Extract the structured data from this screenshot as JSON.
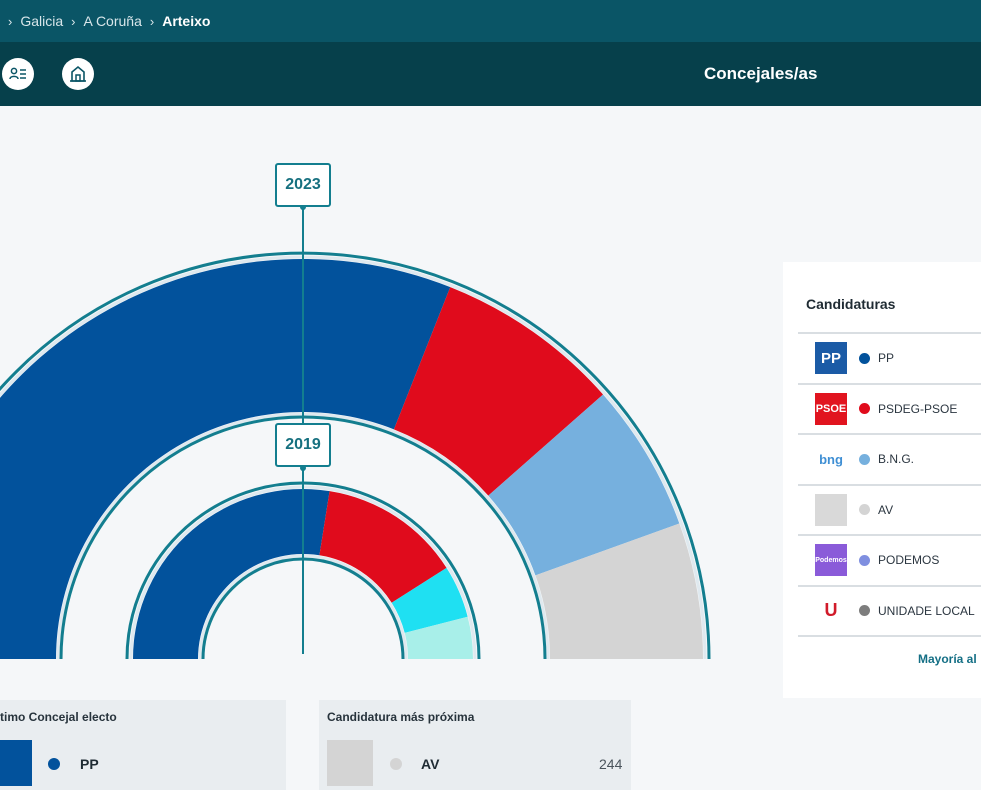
{
  "breadcrumb": [
    "Galicia",
    "A Coruña",
    "Arteixo"
  ],
  "header": {
    "title": "Concejales/as"
  },
  "icons": {
    "list": "candidate-list-icon",
    "building": "town-hall-icon"
  },
  "years": {
    "outer": "2023",
    "inner": "2019"
  },
  "colors": {
    "PP": "#02529c",
    "PSDEG-PSOE": "#e00b1c",
    "B.N.G.": "#76b0de",
    "AV": "#d4d4d4",
    "PODEMOS": "#7f8fe0",
    "UNIDADE LOCAL": "#7d7d7d",
    "cyan": "#1fe0f2",
    "mint": "#a8efe9"
  },
  "arcs": {
    "outer_2023": [
      {
        "party": "PP",
        "share": 0.62
      },
      {
        "party": "PSDEG-PSOE",
        "share": 0.15
      },
      {
        "party": "B.N.G.",
        "share": 0.12
      },
      {
        "party": "AV",
        "share": 0.11
      }
    ],
    "inner_2019": [
      {
        "party": "PP",
        "share": 0.55
      },
      {
        "party": "PSDEG-PSOE",
        "share": 0.27
      },
      {
        "party": "cyan",
        "share": 0.1
      },
      {
        "party": "mint",
        "share": 0.08
      }
    ]
  },
  "candidaturas": {
    "title": "Candidaturas",
    "items": [
      {
        "name": "PP",
        "logo_text": "PP",
        "logo_bg": "#1b5ba6",
        "logo_fg": "#ffffff"
      },
      {
        "name": "PSDEG-PSOE",
        "logo_text": "PSOE",
        "logo_bg": "#e1141f",
        "logo_fg": "#ffffff"
      },
      {
        "name": "B.N.G.",
        "logo_text": "bng",
        "logo_bg": "#ffffff",
        "logo_fg": "#3f8fd4"
      },
      {
        "name": "AV",
        "logo_text": "",
        "logo_bg": "#d9d9d9",
        "logo_fg": "#d9d9d9"
      },
      {
        "name": "PODEMOS",
        "logo_text": "Podemos",
        "logo_bg": "#8a5bd9",
        "logo_fg": "#ffffff"
      },
      {
        "name": "UNIDADE LOCAL",
        "logo_text": "U",
        "logo_bg": "#ffffff",
        "logo_fg": "#d11b2a"
      }
    ],
    "footer": "Mayoría al"
  },
  "cards": {
    "last_elected": {
      "title": "timo Concejal electo",
      "party": "PP"
    },
    "closest": {
      "title": "Candidatura más próxima",
      "party": "AV",
      "votes": "244"
    }
  }
}
